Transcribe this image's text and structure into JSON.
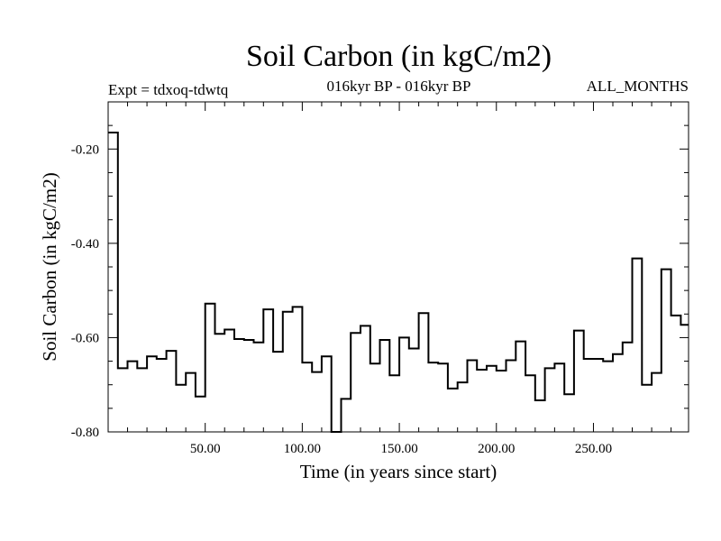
{
  "header": {
    "title": "Soil Carbon (in kgC/m2)",
    "experiment": "Expt = tdxoq-tdwtq",
    "subtitle": "016kyr BP - 016kyr BP",
    "months": "ALL_MONTHS"
  },
  "chart_data": {
    "type": "line",
    "style": "step",
    "title": "Soil Carbon (in kgC/m2)",
    "xlabel": "Time (in years since start)",
    "ylabel": "Soil Carbon (in kgC/m2)",
    "xlim": [
      0,
      299
    ],
    "ylim": [
      -0.8,
      -0.1
    ],
    "x_ticks": [
      50,
      100,
      150,
      200,
      250
    ],
    "x_tick_labels": [
      "50.00",
      "100.00",
      "150.00",
      "200.00",
      "250.00"
    ],
    "y_ticks": [
      -0.2,
      -0.4,
      -0.6,
      -0.8
    ],
    "y_tick_labels": [
      "-0.20",
      "-0.40",
      "-0.60",
      "-0.80"
    ],
    "line_color": "#000000",
    "series": [
      {
        "x": [
          0,
          5,
          10,
          15,
          20,
          25,
          30,
          35,
          40,
          45,
          50,
          55,
          60,
          65,
          70,
          75,
          80,
          85,
          90,
          95,
          100,
          105,
          110,
          115,
          120,
          125,
          130,
          135,
          140,
          145,
          150,
          155,
          160,
          165,
          170,
          175,
          180,
          185,
          190,
          195,
          200,
          205,
          210,
          215,
          220,
          225,
          230,
          235,
          240,
          245,
          250,
          255,
          260,
          265,
          270,
          275,
          280,
          285,
          290,
          295
        ],
        "values": [
          -0.165,
          -0.665,
          -0.65,
          -0.665,
          -0.64,
          -0.645,
          -0.628,
          -0.7,
          -0.675,
          -0.725,
          -0.528,
          -0.592,
          -0.583,
          -0.603,
          -0.605,
          -0.61,
          -0.54,
          -0.63,
          -0.545,
          -0.535,
          -0.653,
          -0.673,
          -0.64,
          -0.8,
          -0.73,
          -0.59,
          -0.575,
          -0.655,
          -0.605,
          -0.68,
          -0.6,
          -0.623,
          -0.548,
          -0.653,
          -0.655,
          -0.708,
          -0.695,
          -0.648,
          -0.668,
          -0.66,
          -0.67,
          -0.648,
          -0.608,
          -0.68,
          -0.733,
          -0.665,
          -0.655,
          -0.72,
          -0.585,
          -0.645,
          -0.645,
          -0.65,
          -0.635,
          -0.61,
          -0.432,
          -0.7,
          -0.675,
          -0.455,
          -0.553,
          -0.573
        ]
      }
    ]
  }
}
